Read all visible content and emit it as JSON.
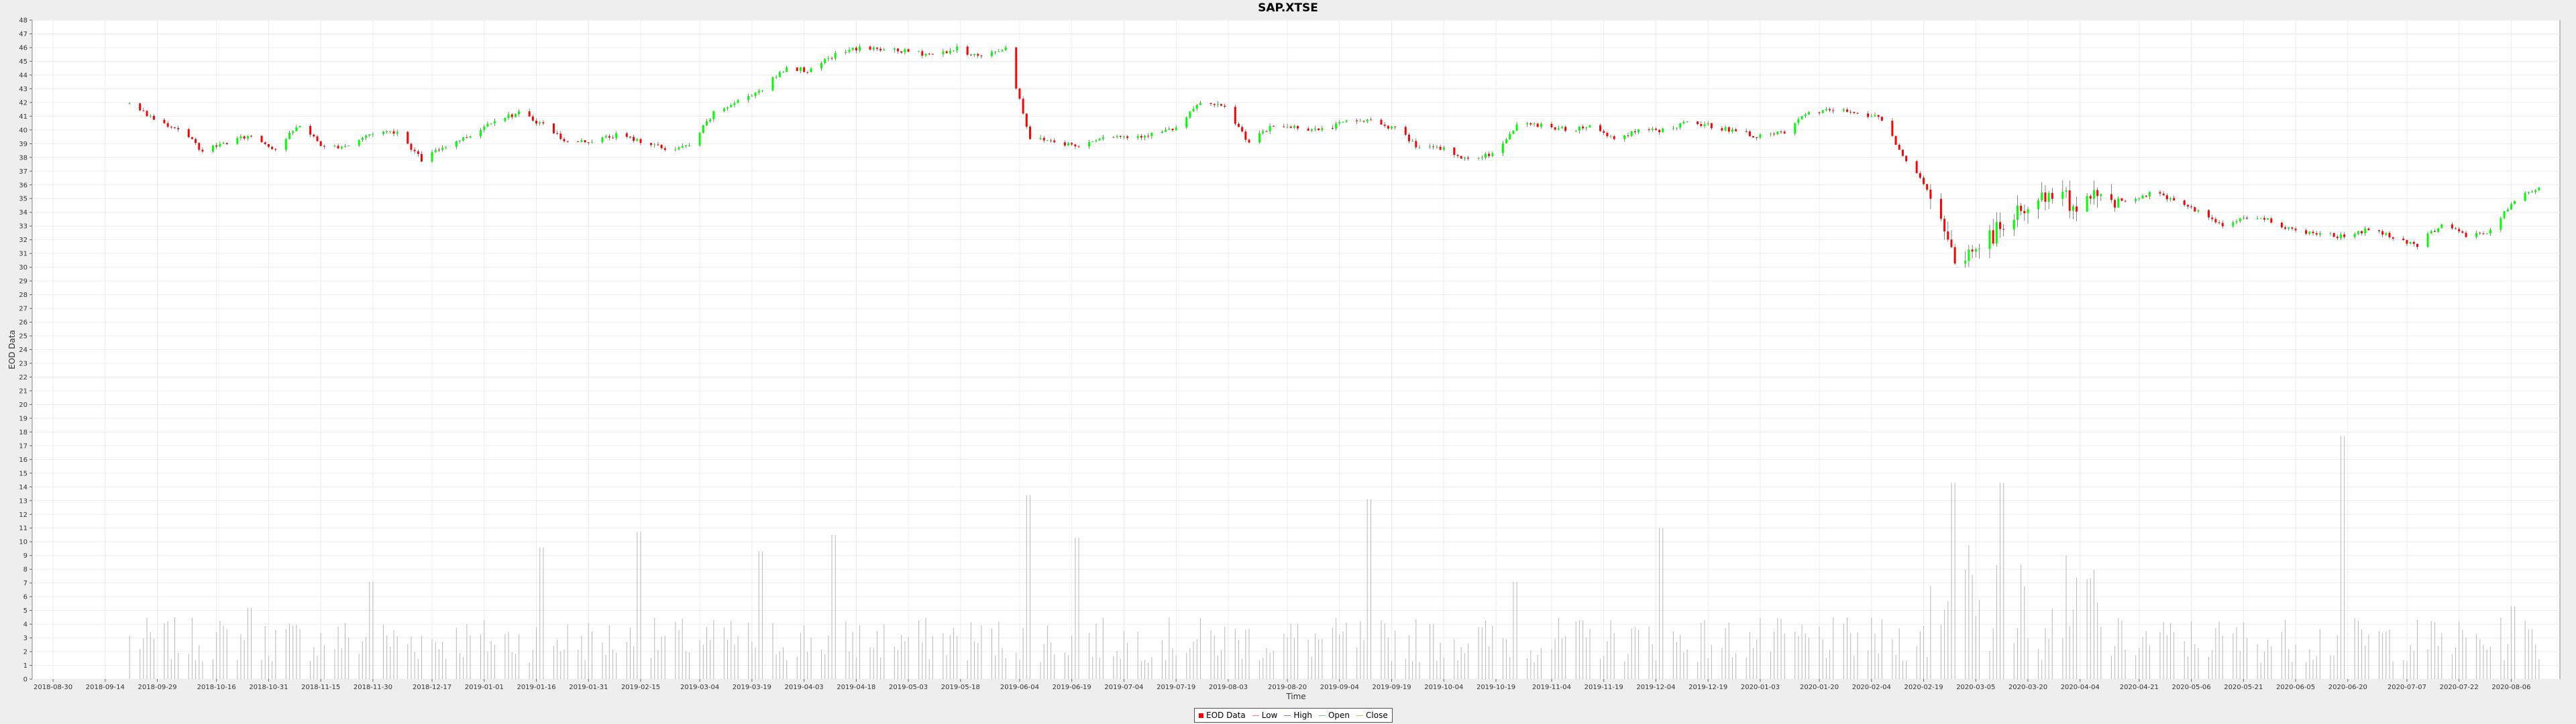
{
  "chart_data": {
    "type": "candlestick",
    "title": "SAP.XTSE",
    "xlabel": "Time",
    "ylabel": "EOD Data",
    "ylim": [
      0,
      48
    ],
    "y_ticks": [
      0,
      1,
      2,
      3,
      4,
      5,
      6,
      7,
      8,
      9,
      10,
      11,
      12,
      13,
      14,
      15,
      16,
      17,
      18,
      19,
      20,
      21,
      22,
      23,
      24,
      25,
      26,
      27,
      28,
      29,
      30,
      31,
      32,
      33,
      34,
      35,
      36,
      37,
      38,
      39,
      40,
      41,
      42,
      43,
      44,
      45,
      46,
      47,
      48
    ],
    "x_range": [
      "2018-09-21",
      "2020-08-14"
    ],
    "x_ticks": [
      "2018-08-30",
      "2018-09-14",
      "2018-09-29",
      "2018-10-16",
      "2018-10-31",
      "2018-11-15",
      "2018-11-30",
      "2018-12-17",
      "2019-01-01",
      "2019-01-16",
      "2019-01-31",
      "2019-02-15",
      "2019-03-04",
      "2019-03-19",
      "2019-04-03",
      "2019-04-18",
      "2019-05-03",
      "2019-05-18",
      "2019-06-04",
      "2019-06-19",
      "2019-07-04",
      "2019-07-19",
      "2019-08-03",
      "2019-08-20",
      "2019-09-04",
      "2019-09-19",
      "2019-10-04",
      "2019-10-19",
      "2019-11-04",
      "2019-11-19",
      "2019-12-04",
      "2019-12-19",
      "2020-01-03",
      "2020-01-20",
      "2020-02-04",
      "2020-02-19",
      "2020-03-05",
      "2020-03-20",
      "2020-04-04",
      "2020-04-21",
      "2020-05-06",
      "2020-05-21",
      "2020-06-05",
      "2020-06-20",
      "2020-07-07",
      "2020-07-22",
      "2020-08-06"
    ],
    "price_series": [
      {
        "date": "2018-09-21",
        "value": 41.9
      },
      {
        "date": "2018-09-28",
        "value": 40.8
      },
      {
        "date": "2018-10-05",
        "value": 40.1
      },
      {
        "date": "2018-10-12",
        "value": 38.5
      },
      {
        "date": "2018-10-19",
        "value": 39.1
      },
      {
        "date": "2018-10-26",
        "value": 39.6
      },
      {
        "date": "2018-11-02",
        "value": 38.6
      },
      {
        "date": "2018-11-09",
        "value": 40.4
      },
      {
        "date": "2018-11-16",
        "value": 38.7
      },
      {
        "date": "2018-11-23",
        "value": 38.9
      },
      {
        "date": "2018-11-30",
        "value": 39.8
      },
      {
        "date": "2018-12-07",
        "value": 39.9
      },
      {
        "date": "2018-12-14",
        "value": 37.8
      },
      {
        "date": "2018-12-21",
        "value": 38.9
      },
      {
        "date": "2018-12-28",
        "value": 39.6
      },
      {
        "date": "2019-01-04",
        "value": 40.8
      },
      {
        "date": "2019-01-11",
        "value": 41.2
      },
      {
        "date": "2019-01-18",
        "value": 40.4
      },
      {
        "date": "2019-01-25",
        "value": 39.1
      },
      {
        "date": "2019-02-01",
        "value": 39.2
      },
      {
        "date": "2019-02-08",
        "value": 39.6
      },
      {
        "date": "2019-02-15",
        "value": 39.2
      },
      {
        "date": "2019-02-22",
        "value": 38.6
      },
      {
        "date": "2019-03-01",
        "value": 38.8
      },
      {
        "date": "2019-03-08",
        "value": 41.2
      },
      {
        "date": "2019-03-15",
        "value": 42.1
      },
      {
        "date": "2019-03-22",
        "value": 43.0
      },
      {
        "date": "2019-03-29",
        "value": 44.6
      },
      {
        "date": "2019-04-05",
        "value": 44.3
      },
      {
        "date": "2019-04-12",
        "value": 45.5
      },
      {
        "date": "2019-04-19",
        "value": 46.0
      },
      {
        "date": "2019-04-26",
        "value": 45.8
      },
      {
        "date": "2019-05-03",
        "value": 45.7
      },
      {
        "date": "2019-05-10",
        "value": 45.5
      },
      {
        "date": "2019-05-17",
        "value": 45.9
      },
      {
        "date": "2019-05-24",
        "value": 45.3
      },
      {
        "date": "2019-05-31",
        "value": 46.0
      },
      {
        "date": "2019-06-07",
        "value": 39.4
      },
      {
        "date": "2019-06-14",
        "value": 39.2
      },
      {
        "date": "2019-06-21",
        "value": 38.8
      },
      {
        "date": "2019-06-28",
        "value": 39.6
      },
      {
        "date": "2019-07-05",
        "value": 39.5
      },
      {
        "date": "2019-07-12",
        "value": 39.7
      },
      {
        "date": "2019-07-19",
        "value": 40.1
      },
      {
        "date": "2019-07-26",
        "value": 42.0
      },
      {
        "date": "2019-08-02",
        "value": 41.6
      },
      {
        "date": "2019-08-09",
        "value": 39.1
      },
      {
        "date": "2019-08-16",
        "value": 40.3
      },
      {
        "date": "2019-08-23",
        "value": 40.2
      },
      {
        "date": "2019-08-30",
        "value": 40.0
      },
      {
        "date": "2019-09-06",
        "value": 40.6
      },
      {
        "date": "2019-09-13",
        "value": 40.7
      },
      {
        "date": "2019-09-20",
        "value": 40.1
      },
      {
        "date": "2019-09-27",
        "value": 38.7
      },
      {
        "date": "2019-10-04",
        "value": 38.6
      },
      {
        "date": "2019-10-11",
        "value": 37.8
      },
      {
        "date": "2019-10-18",
        "value": 38.3
      },
      {
        "date": "2019-10-25",
        "value": 40.3
      },
      {
        "date": "2019-11-01",
        "value": 40.4
      },
      {
        "date": "2019-11-08",
        "value": 40.0
      },
      {
        "date": "2019-11-15",
        "value": 40.3
      },
      {
        "date": "2019-11-22",
        "value": 39.4
      },
      {
        "date": "2019-11-29",
        "value": 39.9
      },
      {
        "date": "2019-12-06",
        "value": 40.0
      },
      {
        "date": "2019-12-13",
        "value": 40.5
      },
      {
        "date": "2019-12-20",
        "value": 40.3
      },
      {
        "date": "2019-12-27",
        "value": 39.9
      },
      {
        "date": "2020-01-03",
        "value": 39.5
      },
      {
        "date": "2020-01-10",
        "value": 39.8
      },
      {
        "date": "2020-01-17",
        "value": 41.3
      },
      {
        "date": "2020-01-24",
        "value": 41.4
      },
      {
        "date": "2020-01-31",
        "value": 41.3
      },
      {
        "date": "2020-02-07",
        "value": 40.8
      },
      {
        "date": "2020-02-14",
        "value": 37.8
      },
      {
        "date": "2020-02-21",
        "value": 35.4
      },
      {
        "date": "2020-02-28",
        "value": 30.2
      },
      {
        "date": "2020-03-06",
        "value": 31.6
      },
      {
        "date": "2020-03-13",
        "value": 33.0
      },
      {
        "date": "2020-03-20",
        "value": 34.5
      },
      {
        "date": "2020-03-27",
        "value": 35.3
      },
      {
        "date": "2020-04-03",
        "value": 34.6
      },
      {
        "date": "2020-04-10",
        "value": 35.3
      },
      {
        "date": "2020-04-17",
        "value": 34.8
      },
      {
        "date": "2020-04-24",
        "value": 35.4
      },
      {
        "date": "2020-05-01",
        "value": 35.0
      },
      {
        "date": "2020-05-08",
        "value": 34.0
      },
      {
        "date": "2020-05-15",
        "value": 33.0
      },
      {
        "date": "2020-05-22",
        "value": 33.7
      },
      {
        "date": "2020-05-29",
        "value": 33.4
      },
      {
        "date": "2020-06-05",
        "value": 32.6
      },
      {
        "date": "2020-06-12",
        "value": 32.5
      },
      {
        "date": "2020-06-19",
        "value": 32.2
      },
      {
        "date": "2020-06-26",
        "value": 32.8
      },
      {
        "date": "2020-07-03",
        "value": 32.2
      },
      {
        "date": "2020-07-10",
        "value": 31.6
      },
      {
        "date": "2020-07-17",
        "value": 33.2
      },
      {
        "date": "2020-07-24",
        "value": 32.3
      },
      {
        "date": "2020-07-31",
        "value": 32.6
      },
      {
        "date": "2020-08-07",
        "value": 34.9
      },
      {
        "date": "2020-08-14",
        "value": 35.8
      }
    ],
    "volume_series": [
      {
        "date": "2018-10-26",
        "value": 5.2
      },
      {
        "date": "2018-11-30",
        "value": 7.1
      },
      {
        "date": "2019-01-18",
        "value": 9.6
      },
      {
        "date": "2019-02-15",
        "value": 10.7
      },
      {
        "date": "2019-03-22",
        "value": 9.3
      },
      {
        "date": "2019-04-12",
        "value": 10.5
      },
      {
        "date": "2019-06-07",
        "value": 13.4
      },
      {
        "date": "2019-06-21",
        "value": 10.3
      },
      {
        "date": "2019-09-13",
        "value": 13.1
      },
      {
        "date": "2019-10-25",
        "value": 7.1
      },
      {
        "date": "2019-12-06",
        "value": 11.0
      },
      {
        "date": "2020-02-28",
        "value": 14.3
      },
      {
        "date": "2020-03-13",
        "value": 14.3
      },
      {
        "date": "2020-06-19",
        "value": 17.7
      },
      {
        "date": "2020-08-07",
        "value": 5.3
      }
    ],
    "legend": {
      "placement": "bottom-center",
      "entries": [
        "EOD Data",
        "Low",
        "High",
        "Open",
        "Close"
      ]
    },
    "colors": {
      "up": "#00ff00",
      "down": "#ff0000",
      "wick": "#333333",
      "volume": "#b8b8b8",
      "grid": "#ececec",
      "plot_background": "#ffffff",
      "page_background": "#eeeeee"
    },
    "grid": true
  }
}
